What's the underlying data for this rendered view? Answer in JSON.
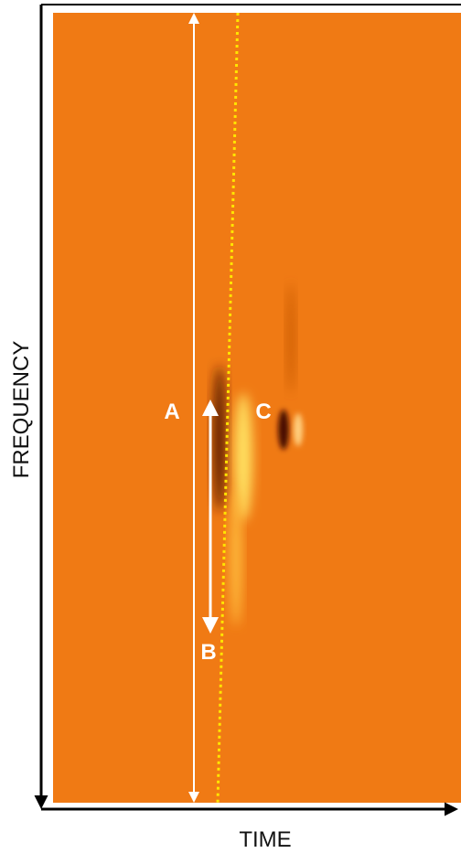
{
  "axes": {
    "x_label": "TIME",
    "y_label": "FREQUENCY"
  },
  "annotations": [
    {
      "label": "A"
    },
    {
      "label": "B"
    },
    {
      "label": "C"
    }
  ]
}
